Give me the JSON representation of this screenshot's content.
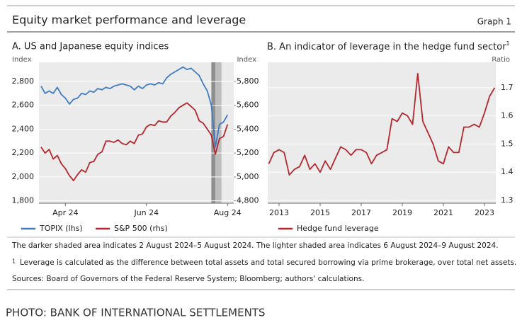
{
  "header": {
    "title": "Equity market performance and leverage",
    "graph_label": "Graph 1"
  },
  "chart_data": [
    {
      "type": "line",
      "title": "A. US and Japanese equity indices",
      "ylabel": "Index",
      "y2label": "Index",
      "categories": [
        null,
        null,
        null,
        null,
        null,
        null,
        "Apr 24",
        null,
        null,
        null,
        null,
        null,
        null,
        null,
        null,
        null,
        null,
        null,
        null,
        null,
        null,
        null,
        null,
        null,
        null,
        null,
        "Jun 24",
        null,
        null,
        null,
        null,
        null,
        null,
        null,
        null,
        null,
        null,
        null,
        null,
        null,
        null,
        null,
        null,
        null,
        null,
        null,
        "Aug 24"
      ],
      "series": [
        {
          "name": "TOPIX (lhs)",
          "color": "#3f7cc4",
          "values": [
            2760,
            2700,
            2720,
            2700,
            2750,
            2690,
            2660,
            2610,
            2650,
            2660,
            2700,
            2690,
            2720,
            2710,
            2740,
            2730,
            2750,
            2740,
            2760,
            2770,
            2780,
            2770,
            2760,
            2730,
            2760,
            2740,
            2770,
            2780,
            2770,
            2790,
            2780,
            2830,
            2860,
            2880,
            2900,
            2920,
            2900,
            2910,
            2880,
            2850,
            2780,
            2720,
            2600,
            2250,
            2440,
            2460,
            2520
          ]
        },
        {
          "name": "S&P 500 (rhs)",
          "color": "#b3272d",
          "axis": "y2",
          "values": [
            5250,
            5200,
            5230,
            5150,
            5180,
            5110,
            5070,
            5010,
            4970,
            5020,
            5060,
            5040,
            5120,
            5130,
            5190,
            5210,
            5300,
            5300,
            5290,
            5310,
            5280,
            5270,
            5300,
            5280,
            5350,
            5360,
            5420,
            5440,
            5430,
            5470,
            5460,
            5460,
            5510,
            5540,
            5580,
            5600,
            5620,
            5590,
            5560,
            5470,
            5450,
            5400,
            5350,
            5190,
            5320,
            5340,
            5440
          ]
        }
      ],
      "ylim": [
        1780,
        2960
      ],
      "yticks": [
        {
          "value": 1800,
          "label": "1,800"
        },
        {
          "value": 2000,
          "label": "2,000"
        },
        {
          "value": 2200,
          "label": "2,200"
        },
        {
          "value": 2400,
          "label": "2,400"
        },
        {
          "value": 2600,
          "label": "2,600"
        },
        {
          "value": 2800,
          "label": "2,800"
        }
      ],
      "y2lim": [
        4780,
        5960
      ],
      "y2ticks": [
        {
          "value": 4800,
          "label": "4,800"
        },
        {
          "value": 5000,
          "label": "5,000"
        },
        {
          "value": 5200,
          "label": "5,200"
        },
        {
          "value": 5400,
          "label": "5,400"
        },
        {
          "value": 5600,
          "label": "5,600"
        },
        {
          "value": 5800,
          "label": "5,800"
        }
      ],
      "shaded_spans": [
        {
          "from": 42,
          "to": 43,
          "color": "#8f8f8f"
        },
        {
          "from": 43,
          "to": 44.5,
          "color": "#bdbdbd"
        }
      ],
      "grid": true
    },
    {
      "type": "line",
      "title": "B. An indicator of leverage in the hedge fund sector",
      "title_note": "1",
      "ylabel": "Ratio",
      "y_axis_side": "right",
      "x": [
        2012.5,
        2012.75,
        2013,
        2013.25,
        2013.5,
        2013.75,
        2014,
        2014.25,
        2014.5,
        2014.75,
        2015,
        2015.25,
        2015.5,
        2015.75,
        2016,
        2016.25,
        2016.5,
        2016.75,
        2017,
        2017.25,
        2017.5,
        2017.75,
        2018,
        2018.25,
        2018.5,
        2018.75,
        2019,
        2019.25,
        2019.5,
        2019.75,
        2020,
        2020.25,
        2020.5,
        2020.75,
        2021,
        2021.25,
        2021.5,
        2021.75,
        2022,
        2022.25,
        2022.5,
        2022.75,
        2023,
        2023.25,
        2023.5
      ],
      "series": [
        {
          "name": "Hedge fund leverage",
          "color": "#b3272d",
          "values": [
            1.43,
            1.47,
            1.48,
            1.47,
            1.39,
            1.41,
            1.42,
            1.46,
            1.41,
            1.43,
            1.4,
            1.44,
            1.41,
            1.45,
            1.49,
            1.48,
            1.46,
            1.48,
            1.48,
            1.47,
            1.43,
            1.46,
            1.47,
            1.48,
            1.59,
            1.58,
            1.61,
            1.6,
            1.57,
            1.75,
            1.58,
            1.54,
            1.5,
            1.44,
            1.43,
            1.49,
            1.47,
            1.47,
            1.56,
            1.56,
            1.57,
            1.56,
            1.61,
            1.67,
            1.7
          ]
        }
      ],
      "xlim": [
        2012.45,
        2023.55
      ],
      "xticks": [
        2013,
        2015,
        2017,
        2019,
        2021,
        2023
      ],
      "ylim": [
        1.29,
        1.79
      ],
      "yticks": [
        1.3,
        1.4,
        1.5,
        1.6,
        1.7
      ],
      "grid": true
    }
  ],
  "notes": "The darker shaded area indicates 2 August 2024–5 August 2024. The lighter shaded area indicates 6 August 2024–9 August 2024.",
  "footnote": {
    "marker": "1",
    "text": "Leverage is calculated as the difference between total assets and total secured borrowing via prime brokerage, over total net assets."
  },
  "sources": "Sources: Board of Governors of the Federal Reserve System; Bloomberg; authors' calculations.",
  "caption": "PHOTO: BANK OF INTERNATIONAL SETTLEMENTS"
}
